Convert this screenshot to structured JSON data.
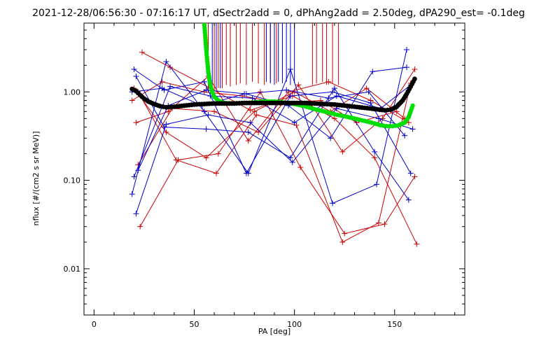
{
  "chart_data": {
    "type": "scatter",
    "title": "2021-12-28/06:56:30 - 07:16:17 UT, dSectr2add = 0, dPhAng2add = 2.50deg, dPA290_est=  -0.1deg",
    "xlabel": "PA [deg]",
    "ylabel": "nflux [#/(cm2 s sr MeV)]",
    "xlim": [
      -5,
      185
    ],
    "ylim": [
      0.003,
      6
    ],
    "yscale": "log",
    "xticks": [
      0,
      50,
      100,
      150
    ],
    "xtick_labels": [
      "0",
      "50",
      "100",
      "150"
    ],
    "yticks": [
      0.01,
      0.1,
      1.0
    ],
    "ytick_labels": [
      "0.01",
      "0.10",
      "1.00"
    ],
    "colors": {
      "red": "#cc0000",
      "blue": "#0000cc",
      "green": "#00dd00",
      "black": "#000000"
    },
    "series": [
      {
        "color": "red",
        "marker": "plus",
        "x": [
          22,
          41,
          61,
          81,
          101,
          124,
          142,
          158
        ],
        "y": [
          1.0,
          0.17,
          0.12,
          0.55,
          0.42,
          0.02,
          0.033,
          1.25
        ]
      },
      {
        "color": "red",
        "marker": "plus",
        "x": [
          24,
          38,
          58,
          78,
          99,
          120,
          140,
          161
        ],
        "y": [
          2.8,
          1.9,
          1.1,
          0.62,
          0.9,
          0.5,
          0.18,
          0.019
        ]
      },
      {
        "color": "red",
        "marker": "plus",
        "x": [
          19,
          34,
          55,
          74,
          93,
          113,
          131,
          151
        ],
        "y": [
          0.8,
          1.3,
          1.0,
          0.9,
          0.75,
          0.8,
          0.45,
          0.6
        ]
      },
      {
        "color": "red",
        "marker": "plus",
        "x": [
          21,
          37,
          57,
          77,
          97,
          117,
          138,
          157
        ],
        "y": [
          0.45,
          0.6,
          1.5,
          0.28,
          1.0,
          1.3,
          0.8,
          0.45
        ]
      },
      {
        "color": "red",
        "marker": "plus",
        "x": [
          23,
          42,
          62,
          83,
          103,
          125,
          145,
          160
        ],
        "y": [
          0.03,
          0.17,
          0.2,
          1.0,
          0.14,
          0.025,
          0.032,
          0.11
        ]
      },
      {
        "color": "red",
        "marker": "plus",
        "x": [
          20,
          36,
          56,
          80,
          100,
          118,
          136,
          155
        ],
        "y": [
          1.1,
          0.35,
          0.18,
          0.6,
          1.0,
          0.6,
          1.1,
          0.5
        ]
      },
      {
        "color": "red",
        "marker": "plus",
        "x": [
          22,
          39,
          60,
          82,
          102,
          124,
          144,
          160
        ],
        "y": [
          0.15,
          0.65,
          0.6,
          0.35,
          1.2,
          0.21,
          0.5,
          1.8
        ]
      },
      {
        "color": "blue",
        "marker": "plus",
        "x": [
          19,
          36,
          55,
          77,
          98,
          119,
          141,
          156
        ],
        "y": [
          0.07,
          2.2,
          0.6,
          0.12,
          1.8,
          0.055,
          0.09,
          3.0
        ]
      },
      {
        "color": "blue",
        "marker": "plus",
        "x": [
          21,
          35,
          56,
          77,
          98,
          120,
          140,
          157
        ],
        "y": [
          1.5,
          0.4,
          0.38,
          0.35,
          0.18,
          1.1,
          0.21,
          0.06
        ]
      },
      {
        "color": "blue",
        "marker": "plus",
        "x": [
          20,
          35,
          55,
          76,
          98,
          119,
          138,
          158
        ],
        "y": [
          1.8,
          1.05,
          1.3,
          0.12,
          0.9,
          1.0,
          0.75,
          0.12
        ]
      },
      {
        "color": "blue",
        "marker": "plus",
        "x": [
          21,
          36,
          57,
          78,
          99,
          121,
          142,
          159
        ],
        "y": [
          0.042,
          0.43,
          0.55,
          0.45,
          0.16,
          0.65,
          0.5,
          0.38
        ]
      },
      {
        "color": "blue",
        "marker": "plus",
        "x": [
          22,
          37,
          56,
          76,
          97,
          118,
          139,
          156
        ],
        "y": [
          0.13,
          0.7,
          1.05,
          0.95,
          0.7,
          0.3,
          1.7,
          1.9
        ]
      },
      {
        "color": "blue",
        "marker": "plus",
        "x": [
          20,
          38,
          58,
          79,
          100,
          121,
          143,
          158
        ],
        "y": [
          0.11,
          1.15,
          0.9,
          0.85,
          0.45,
          0.9,
          0.65,
          1.2
        ]
      },
      {
        "color": "blue",
        "marker": "plus",
        "x": [
          19,
          34,
          54,
          75,
          96,
          117,
          137,
          155
        ],
        "y": [
          1.0,
          1.1,
          0.7,
          0.95,
          1.05,
          0.85,
          1.0,
          0.32
        ]
      },
      {
        "color": "green",
        "marker": "dot",
        "x": [
          55,
          56,
          57,
          58,
          59,
          60,
          62,
          64,
          67,
          70,
          75,
          80,
          85,
          90,
          95,
          100,
          105,
          110,
          115,
          120,
          125,
          130,
          135,
          140,
          143,
          146,
          149,
          152,
          155,
          157,
          159
        ],
        "y": [
          6.0,
          3.0,
          1.7,
          1.2,
          1.0,
          0.88,
          0.8,
          0.76,
          0.74,
          0.74,
          0.75,
          0.76,
          0.78,
          0.78,
          0.76,
          0.73,
          0.69,
          0.64,
          0.6,
          0.56,
          0.53,
          0.5,
          0.47,
          0.44,
          0.42,
          0.41,
          0.41,
          0.42,
          0.45,
          0.52,
          0.7
        ]
      },
      {
        "color": "black",
        "marker": "dot",
        "x": [
          19,
          21,
          23,
          25,
          27,
          30,
          33,
          36,
          40,
          45,
          50,
          55,
          60,
          65,
          70,
          75,
          80,
          85,
          90,
          95,
          100,
          105,
          110,
          115,
          120,
          125,
          130,
          135,
          140,
          145,
          148,
          151,
          154,
          156,
          158,
          160
        ],
        "y": [
          1.08,
          1.02,
          0.92,
          0.84,
          0.78,
          0.73,
          0.69,
          0.67,
          0.68,
          0.7,
          0.72,
          0.73,
          0.74,
          0.74,
          0.74,
          0.75,
          0.75,
          0.75,
          0.75,
          0.75,
          0.75,
          0.75,
          0.74,
          0.73,
          0.72,
          0.7,
          0.68,
          0.66,
          0.64,
          0.62,
          0.63,
          0.68,
          0.8,
          0.95,
          1.15,
          1.4
        ]
      }
    ],
    "vertical_segments": {
      "red": {
        "x": [
          57,
          60,
          62,
          64,
          66,
          68,
          71,
          73,
          76,
          79,
          82,
          85,
          88,
          91,
          109,
          111,
          114,
          116,
          119,
          122
        ],
        "y_from": [
          1.0,
          1.05,
          1.1,
          1.1,
          1.2,
          1.15,
          1.2,
          1.25,
          1.2,
          1.3,
          1.25,
          1.2,
          1.3,
          1.25,
          1.2,
          1.25,
          1.3,
          1.2,
          1.25,
          1.2
        ]
      },
      "blue": {
        "x": [
          59,
          61,
          63,
          86,
          88,
          90,
          92,
          94,
          96,
          98,
          100
        ],
        "y_from": [
          1.0,
          1.05,
          1.1,
          1.3,
          1.25,
          1.2,
          1.3,
          1.25,
          1.3,
          1.2,
          1.25
        ]
      }
    }
  }
}
